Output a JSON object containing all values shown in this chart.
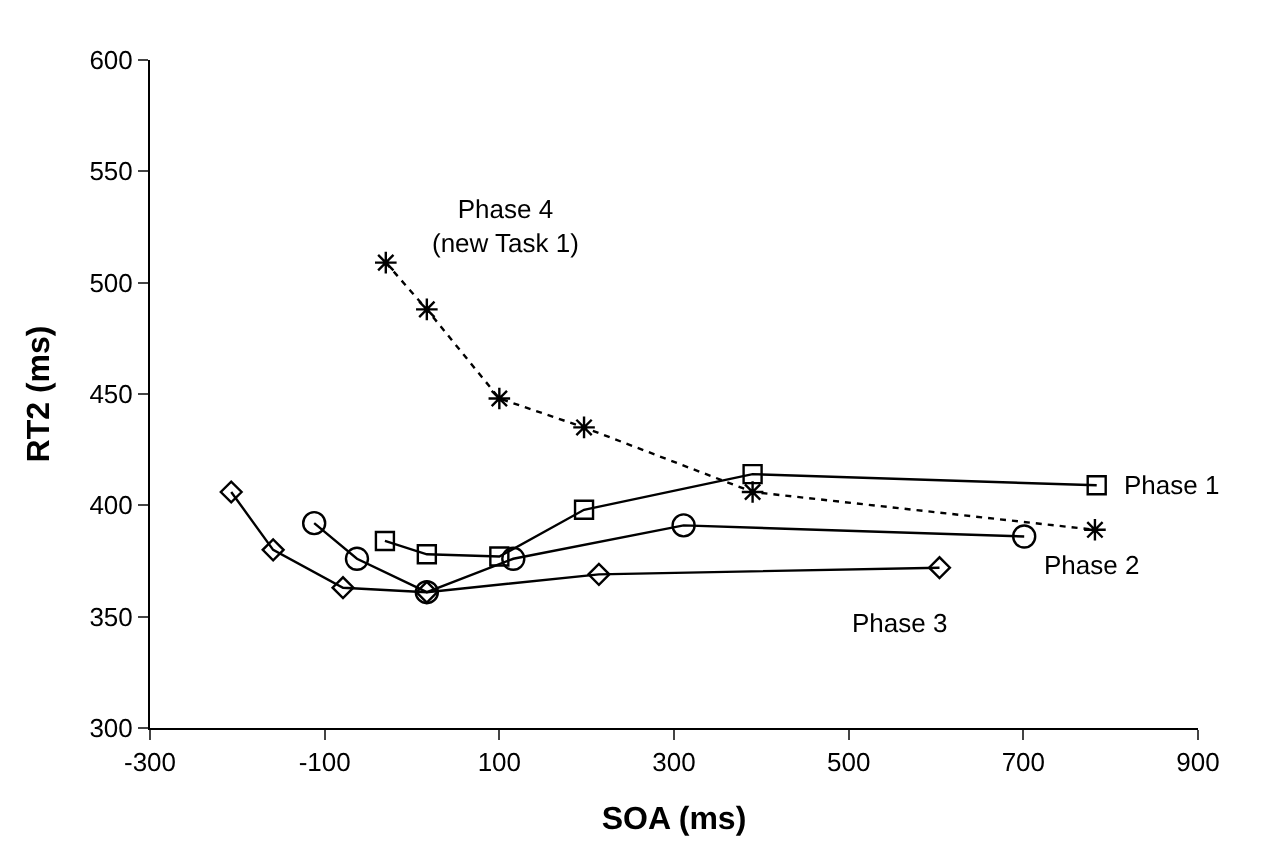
{
  "chart_data": {
    "type": "line",
    "xlabel": "SOA (ms)",
    "ylabel": "RT2 (ms)",
    "xlim": [
      -300,
      900
    ],
    "xticks": [
      -300,
      -100,
      100,
      300,
      500,
      700,
      900
    ],
    "ylim": [
      300,
      600
    ],
    "yticks": [
      300,
      350,
      400,
      450,
      500,
      550,
      600
    ],
    "legend": false,
    "series": [
      {
        "name": "Phase 1",
        "color": "#000000",
        "marker": "square",
        "line_style": "solid",
        "x": [
          -31,
          17,
          100,
          197,
          390,
          784
        ],
        "values": [
          384,
          378,
          377,
          398,
          414,
          409
        ]
      },
      {
        "name": "Phase 2",
        "color": "#000000",
        "marker": "circle",
        "line_style": "solid",
        "x": [
          -112,
          -63,
          17,
          116,
          311,
          701
        ],
        "values": [
          392,
          376,
          361,
          376,
          391,
          386
        ]
      },
      {
        "name": "Phase 3",
        "color": "#000000",
        "marker": "diamond",
        "line_style": "solid",
        "x": [
          -207,
          -159,
          -79,
          17,
          214,
          604
        ],
        "values": [
          406,
          380,
          363,
          361,
          369,
          372
        ]
      },
      {
        "name": "Phase 4\n(new Task 1)",
        "color": "#000000",
        "marker": "cross",
        "line_style": "dotted",
        "x": [
          -30,
          17,
          100,
          197,
          390,
          782
        ],
        "values": [
          509,
          488,
          448,
          435,
          406,
          389
        ]
      }
    ]
  }
}
